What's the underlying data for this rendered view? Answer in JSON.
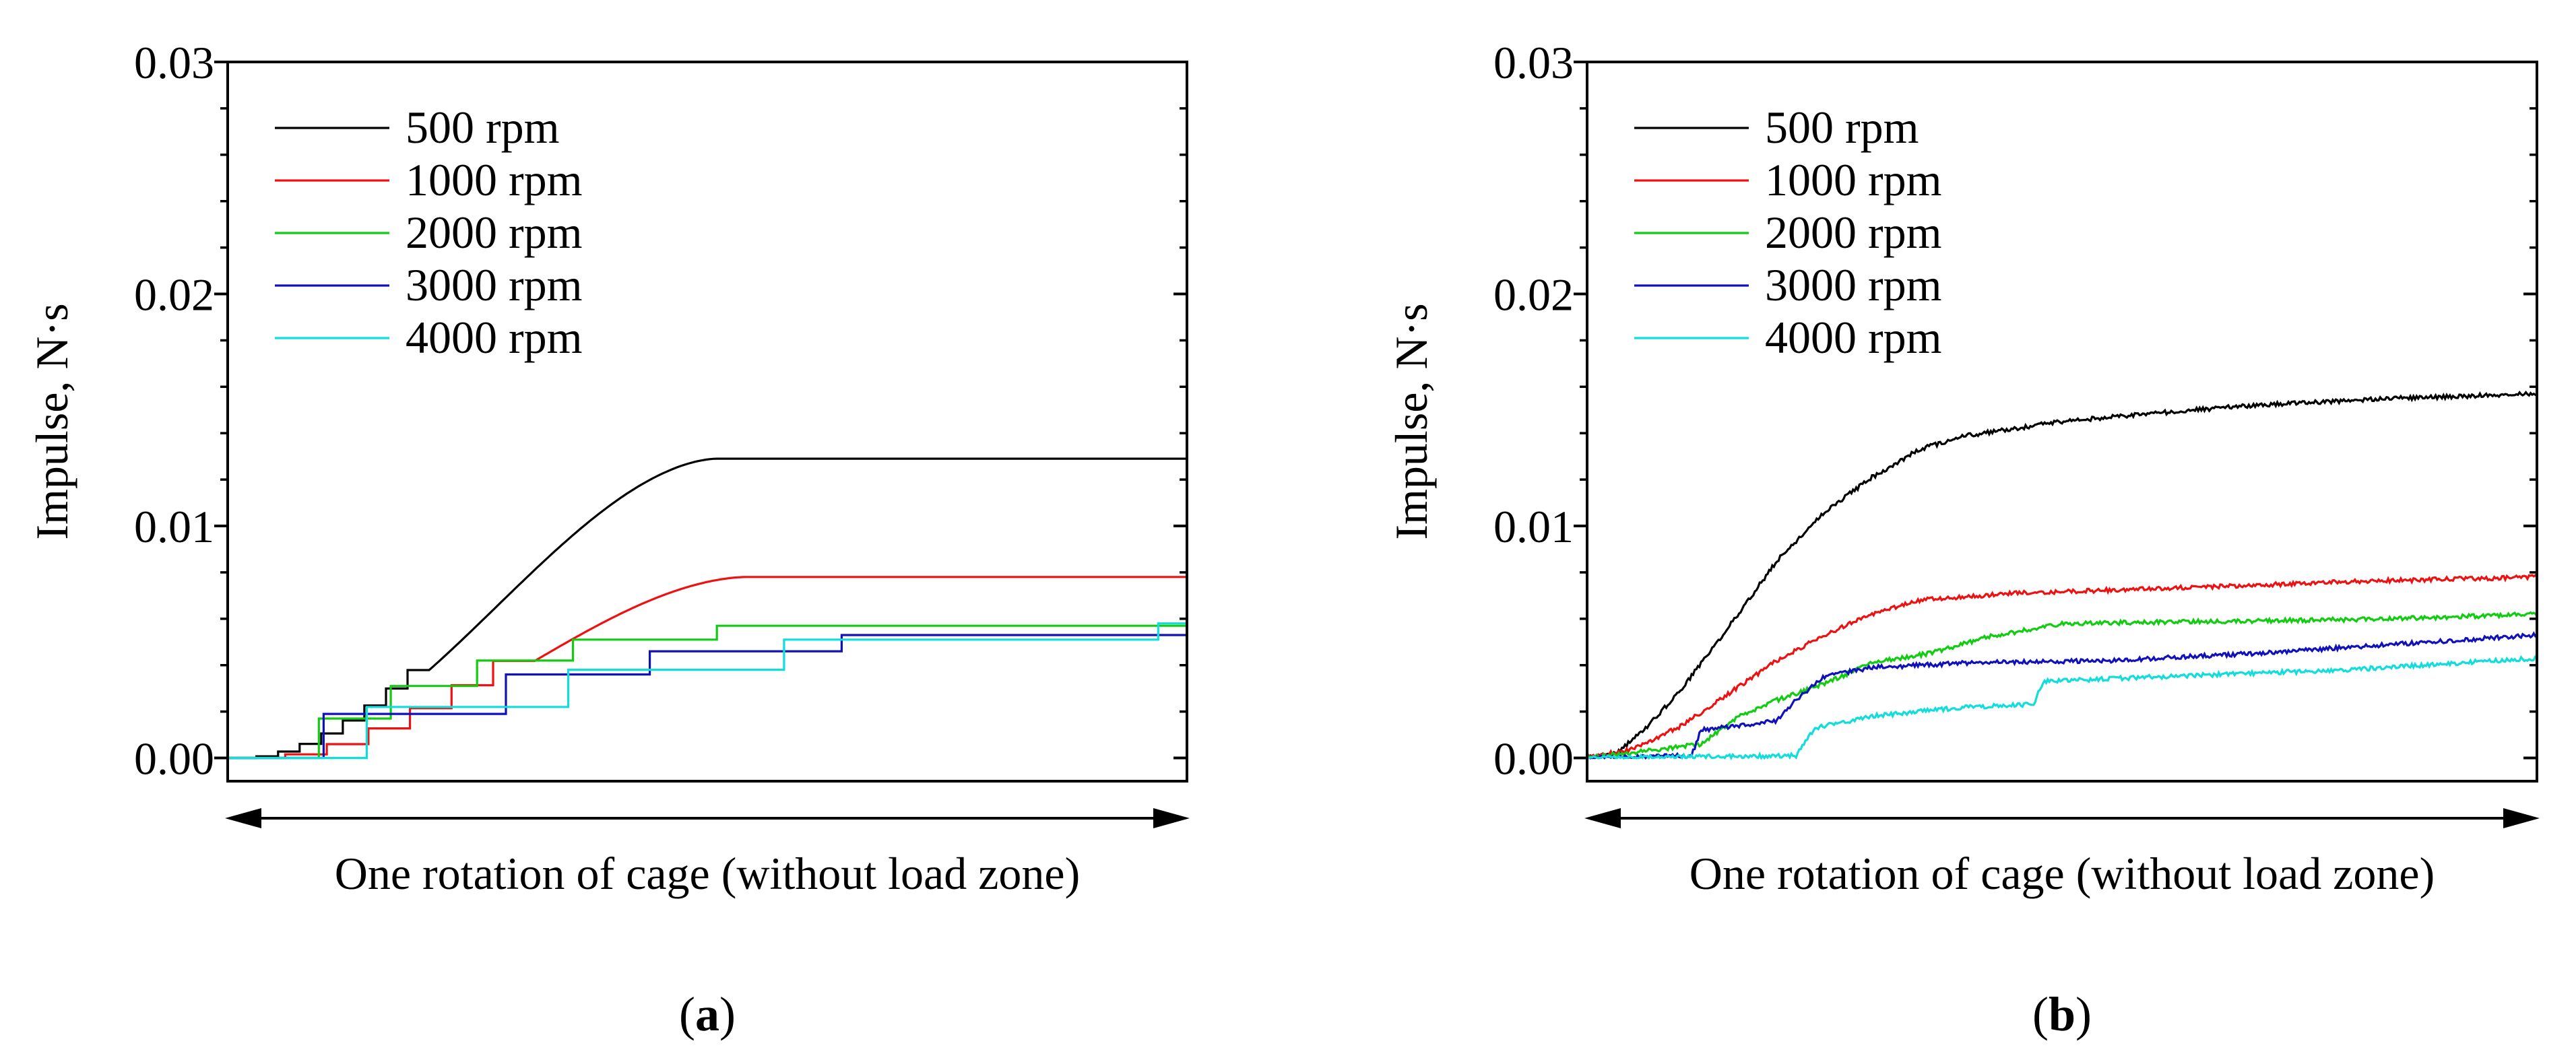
{
  "chart_data": [
    {
      "type": "line",
      "panel_label": "a",
      "xlabel": "One rotation of cage (without load zone)",
      "ylabel": "Impulse, N·s",
      "x_range": [
        0,
        1
      ],
      "ylim": [
        -0.001,
        0.03
      ],
      "yticks": [
        0.0,
        0.01,
        0.02,
        0.03
      ],
      "ytick_labels": [
        "0.00",
        "0.01",
        "0.02",
        "0.03"
      ],
      "legend_position": "top-left",
      "series": [
        {
          "name": "500 rpm",
          "color": "#000000",
          "style": "rise-plateau",
          "x_start": 0.03,
          "x_sat": 0.51,
          "y_end": 0.0129,
          "steps": 8,
          "step_until": 0.21
        },
        {
          "name": "1000 rpm",
          "color": "#ee1111",
          "style": "rise-plateau",
          "x_start": 0.06,
          "x_sat": 0.54,
          "y_end": 0.0078,
          "steps": 6,
          "step_until": 0.32
        },
        {
          "name": "2000 rpm",
          "color": "#11cc11",
          "style": "staircase",
          "x_start": 0.095,
          "first_y": 0.0017,
          "y_end": 0.0057,
          "breaks": [
            0.095,
            0.17,
            0.26,
            0.36,
            0.51
          ],
          "levels": [
            0.0017,
            0.0031,
            0.0042,
            0.0051,
            0.0057
          ]
        },
        {
          "name": "3000 rpm",
          "color": "#1111bb",
          "style": "staircase",
          "x_start": 0.1,
          "first_y": 0.0019,
          "y_end": 0.0053,
          "breaks": [
            0.1,
            0.29,
            0.44,
            0.64
          ],
          "levels": [
            0.0019,
            0.0036,
            0.0046,
            0.0053
          ]
        },
        {
          "name": "4000 rpm",
          "color": "#11dddd",
          "style": "staircase",
          "x_start": 0.145,
          "first_y": 0.0022,
          "y_end": 0.0058,
          "breaks": [
            0.145,
            0.355,
            0.58,
            0.97
          ],
          "levels": [
            0.0022,
            0.0038,
            0.0051,
            0.0058
          ]
        }
      ]
    },
    {
      "type": "line",
      "panel_label": "b",
      "xlabel": "One rotation of cage (without load zone)",
      "ylabel": "Impulse, N·s",
      "x_range": [
        0,
        1
      ],
      "ylim": [
        -0.001,
        0.03
      ],
      "yticks": [
        0.0,
        0.01,
        0.02,
        0.03
      ],
      "ytick_labels": [
        "0.00",
        "0.01",
        "0.02",
        "0.03"
      ],
      "legend_position": "top-left",
      "series": [
        {
          "name": "500 rpm",
          "color": "#000000",
          "style": "noisy-rise",
          "points": [
            [
              0.0,
              0.0
            ],
            [
              0.03,
              0.0002
            ],
            [
              0.06,
              0.0012
            ],
            [
              0.1,
              0.003
            ],
            [
              0.15,
              0.0057
            ],
            [
              0.2,
              0.0085
            ],
            [
              0.25,
              0.0106
            ],
            [
              0.3,
              0.0121
            ],
            [
              0.35,
              0.0133
            ],
            [
              0.4,
              0.0139
            ],
            [
              0.45,
              0.0142
            ],
            [
              0.5,
              0.0145
            ],
            [
              0.58,
              0.0148
            ],
            [
              0.7,
              0.0152
            ],
            [
              0.85,
              0.0155
            ],
            [
              1.0,
              0.0157
            ]
          ]
        },
        {
          "name": "1000 rpm",
          "color": "#ee1111",
          "style": "noisy-rise",
          "points": [
            [
              0.0,
              0.0
            ],
            [
              0.05,
              0.0004
            ],
            [
              0.1,
              0.0014
            ],
            [
              0.15,
              0.0028
            ],
            [
              0.2,
              0.0042
            ],
            [
              0.25,
              0.0053
            ],
            [
              0.3,
              0.0062
            ],
            [
              0.35,
              0.0068
            ],
            [
              0.45,
              0.0071
            ],
            [
              0.6,
              0.0073
            ],
            [
              0.8,
              0.0076
            ],
            [
              1.0,
              0.0078
            ]
          ]
        },
        {
          "name": "2000 rpm",
          "color": "#11cc11",
          "style": "noisy-rise",
          "points": [
            [
              0.0,
              0.0
            ],
            [
              0.06,
              0.0003
            ],
            [
              0.12,
              0.0006
            ],
            [
              0.16,
              0.0018
            ],
            [
              0.2,
              0.0025
            ],
            [
              0.25,
              0.0032
            ],
            [
              0.3,
              0.0041
            ],
            [
              0.36,
              0.0045
            ],
            [
              0.42,
              0.0052
            ],
            [
              0.5,
              0.0058
            ],
            [
              0.7,
              0.0059
            ],
            [
              0.85,
              0.006
            ],
            [
              1.0,
              0.0062
            ]
          ]
        },
        {
          "name": "3000 rpm",
          "color": "#1111bb",
          "style": "noisy-rise",
          "points": [
            [
              0.0,
              0.0
            ],
            [
              0.11,
              0.0001
            ],
            [
              0.12,
              0.0012
            ],
            [
              0.2,
              0.0016
            ],
            [
              0.22,
              0.0025
            ],
            [
              0.25,
              0.0035
            ],
            [
              0.3,
              0.0039
            ],
            [
              0.4,
              0.0041
            ],
            [
              0.55,
              0.0042
            ],
            [
              0.7,
              0.0045
            ],
            [
              0.85,
              0.0049
            ],
            [
              1.0,
              0.0053
            ]
          ]
        },
        {
          "name": "4000 rpm",
          "color": "#11dddd",
          "style": "noisy-rise",
          "points": [
            [
              0.0,
              0.0
            ],
            [
              0.22,
              0.0001
            ],
            [
              0.24,
              0.0013
            ],
            [
              0.3,
              0.0018
            ],
            [
              0.4,
              0.0022
            ],
            [
              0.47,
              0.0023
            ],
            [
              0.48,
              0.0033
            ],
            [
              0.6,
              0.0035
            ],
            [
              0.8,
              0.0038
            ],
            [
              1.0,
              0.0043
            ]
          ]
        }
      ]
    }
  ]
}
